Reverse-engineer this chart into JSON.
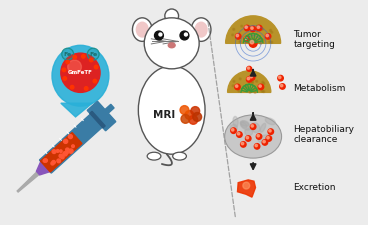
{
  "bg_color": "#ececec",
  "labels": [
    "Tumor\ntargeting",
    "Metabolism",
    "Hepatobiliary\nclearance",
    "Excretion"
  ],
  "arrow_color": "#222222",
  "label_fontsize": 6.5,
  "syringe_body_color": "#3a7ca5",
  "tumor_dome_color": "#b8932a",
  "liver_color": "#c8c8c8",
  "mouse_outline": "#555555",
  "dashed_line_color": "#888888",
  "red_dot_color": "#e03030",
  "green_spike_color": "#3a9a3a",
  "blob_color": "#2ab0d8"
}
